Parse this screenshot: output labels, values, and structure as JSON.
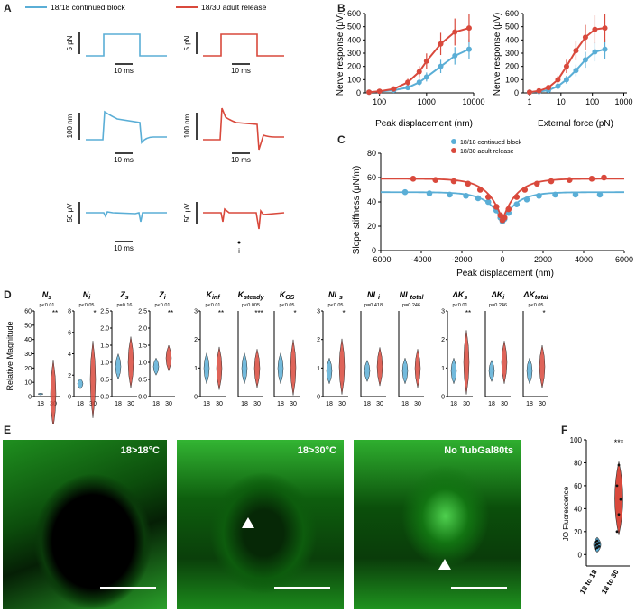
{
  "panel_letters": {
    "a": "A",
    "b": "B",
    "c": "C",
    "d": "D",
    "e": "E",
    "f": "F"
  },
  "panelA": {
    "legend": [
      "18/18 continued block",
      "18/30 adult release"
    ],
    "colors": {
      "blue": "#5aaed6",
      "red": "#d9493c"
    },
    "rows": [
      {
        "scale": "5 pN",
        "time": "10 ms"
      },
      {
        "scale": "100 nm",
        "time": "10 ms"
      },
      {
        "scale": "50 μV",
        "time": "10 ms"
      }
    ],
    "right_scales": [
      "5 pN",
      "100 nm",
      "50 μV"
    ],
    "marker": "i"
  },
  "panelB": {
    "ylabel": "Nerve response (μV)",
    "xlabel_left": "Peak displacement (nm)",
    "xlabel_right": "External force (pN)",
    "yticks": [
      "0",
      "100",
      "200",
      "300",
      "400",
      "500",
      "600"
    ],
    "xticks_left": [
      "100",
      "1000",
      "10000"
    ],
    "xticks_right": [
      "1",
      "10",
      "100",
      "1000"
    ]
  },
  "panelC": {
    "legend": [
      "18/18 continued block",
      "18/30 adult release"
    ],
    "ylabel": "Slope stiffness (μN/m)",
    "xlabel": "Peak displacement (nm)",
    "yticks": [
      "0",
      "20",
      "40",
      "60",
      "80"
    ],
    "xticks": [
      "-6000",
      "-4000",
      "-2000",
      "0",
      "2000",
      "4000",
      "6000"
    ]
  },
  "panelD": {
    "ylabel": "Relative Magnitude",
    "xcat": [
      "18",
      "30"
    ],
    "groups": [
      {
        "name": "N",
        "sub": "s",
        "p": "p<0.01",
        "stars": "**",
        "yticks": [
          "0",
          "10",
          "20",
          "30",
          "40",
          "50",
          "60"
        ]
      },
      {
        "name": "N",
        "sub": "i",
        "p": "p<0.05",
        "stars": "*",
        "yticks": [
          "0",
          "2",
          "4",
          "6",
          "8"
        ]
      },
      {
        "name": "Z",
        "sub": "s",
        "p": "p=0.16",
        "stars": "",
        "yticks": [
          "0.0",
          "0.5",
          "1.0",
          "1.5",
          "2.0",
          "2.5"
        ]
      },
      {
        "name": "Z",
        "sub": "i",
        "p": "p<0.01",
        "stars": "**",
        "yticks": [
          "0.0",
          "0.5",
          "1.0",
          "1.5",
          "2.0",
          "2.5"
        ]
      },
      {
        "name": "K",
        "sub": "inf",
        "p": "p<0.01",
        "stars": "**",
        "yticks": [
          "0",
          "1",
          "2",
          "3"
        ]
      },
      {
        "name": "K",
        "sub": "steady",
        "p": "p<0.005",
        "stars": "***",
        "yticks": []
      },
      {
        "name": "K",
        "sub": "GS",
        "p": "p<0.05",
        "stars": "*",
        "yticks": []
      },
      {
        "name": "NL",
        "sub": "s",
        "p": "p<0.05",
        "stars": "*",
        "yticks": [
          "0",
          "1",
          "2",
          "3"
        ]
      },
      {
        "name": "NL",
        "sub": "i",
        "p": "p=0.418",
        "stars": "",
        "yticks": []
      },
      {
        "name": "NL",
        "sub": "total",
        "p": "p=0.246",
        "stars": "",
        "yticks": []
      },
      {
        "name": "ΔK",
        "sub": "s",
        "p": "p<0.01",
        "stars": "**",
        "yticks": [
          "0",
          "1",
          "2",
          "3"
        ]
      },
      {
        "name": "ΔK",
        "sub": "i",
        "p": "p=0.246",
        "stars": "",
        "yticks": []
      },
      {
        "name": "ΔK",
        "sub": "total",
        "p": "p<0.05",
        "stars": "*",
        "yticks": []
      }
    ]
  },
  "panelE": {
    "labels": [
      "18>18°C",
      "18>30°C",
      "No TubGal80ts"
    ]
  },
  "panelF": {
    "ylabel": "JO Fluorescence",
    "yticks": [
      "0",
      "20",
      "40",
      "60",
      "80",
      "100"
    ],
    "categories": [
      "18 to 18",
      "18 to 30"
    ],
    "stars": "***"
  },
  "chart_data": [
    {
      "type": "line",
      "title": "",
      "xlabel": "Peak displacement (nm)",
      "ylabel": "Nerve response (μV)",
      "xscale": "log",
      "ylim": [
        0,
        600
      ],
      "series": [
        {
          "name": "18/18 continued block",
          "color": "#5aaed6",
          "x": [
            60,
            100,
            200,
            400,
            700,
            1000,
            2000,
            4000,
            8000
          ],
          "y": [
            5,
            10,
            20,
            40,
            80,
            120,
            200,
            280,
            330
          ]
        },
        {
          "name": "18/30 adult release",
          "color": "#d9493c",
          "x": [
            60,
            100,
            200,
            400,
            700,
            1000,
            2000,
            4000,
            8000
          ],
          "y": [
            5,
            12,
            30,
            80,
            160,
            240,
            370,
            460,
            490
          ]
        }
      ]
    },
    {
      "type": "line",
      "title": "",
      "xlabel": "External force (pN)",
      "ylabel": "Nerve response (μV)",
      "xscale": "log",
      "ylim": [
        0,
        600
      ],
      "series": [
        {
          "name": "18/18 continued block",
          "color": "#5aaed6",
          "x": [
            1,
            2,
            4,
            8,
            15,
            30,
            60,
            120,
            250
          ],
          "y": [
            5,
            10,
            20,
            50,
            100,
            170,
            250,
            310,
            330
          ]
        },
        {
          "name": "18/30 adult release",
          "color": "#d9493c",
          "x": [
            1,
            2,
            4,
            8,
            15,
            30,
            60,
            120,
            250
          ],
          "y": [
            5,
            15,
            40,
            100,
            200,
            320,
            420,
            480,
            490
          ]
        }
      ]
    },
    {
      "type": "scatter",
      "title": "",
      "xlabel": "Peak displacement (nm)",
      "ylabel": "Slope stiffness (μN/m)",
      "xlim": [
        -6000,
        6000
      ],
      "ylim": [
        0,
        80
      ],
      "series": [
        {
          "name": "18/18 continued block",
          "color": "#5aaed6",
          "x": [
            -4800,
            -3600,
            -2600,
            -1800,
            -1200,
            -700,
            -300,
            -100,
            0,
            100,
            300,
            700,
            1200,
            1800,
            2600,
            3600,
            4800
          ],
          "y": [
            48,
            47,
            46,
            45,
            43,
            40,
            33,
            27,
            24,
            26,
            31,
            38,
            42,
            45,
            46,
            46,
            46
          ]
        },
        {
          "name": "18/30 adult release",
          "color": "#d9493c",
          "x": [
            -4400,
            -3300,
            -2400,
            -1700,
            -1100,
            -700,
            -300,
            -100,
            0,
            100,
            300,
            700,
            1100,
            1700,
            2400,
            3300,
            4400,
            5000
          ],
          "y": [
            59,
            58,
            57,
            55,
            50,
            44,
            36,
            29,
            25,
            27,
            34,
            44,
            50,
            55,
            57,
            58,
            59,
            60
          ]
        }
      ]
    },
    {
      "type": "violin",
      "title": "",
      "xlabel": "",
      "ylabel": "JO Fluorescence",
      "ylim": [
        -10,
        100
      ],
      "categories": [
        "18 to 18",
        "18 to 30"
      ],
      "series": [
        {
          "name": "18 to 18",
          "color": "#5aaed6",
          "values": [
            5,
            6,
            7,
            8,
            9,
            10,
            11,
            12
          ]
        },
        {
          "name": "18 to 30",
          "color": "#d9493c",
          "values": [
            20,
            35,
            48,
            60,
            78
          ]
        }
      ]
    }
  ]
}
